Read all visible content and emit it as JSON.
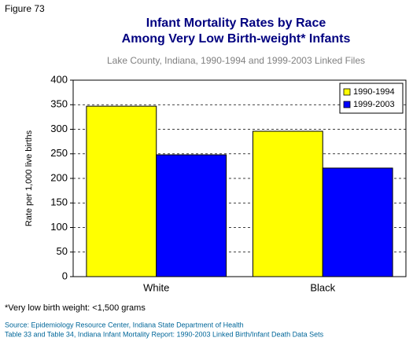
{
  "figure_label": "Figure 73",
  "chart_data": {
    "type": "bar",
    "title": [
      "Infant Mortality Rates by Race",
      "Among Very Low Birth-weight* Infants"
    ],
    "subtitle": "Lake County, Indiana, 1990-1994 and 1999-2003 Linked Files",
    "y_label": "Rate per 1,000 live births",
    "categories": [
      "White",
      "Black"
    ],
    "series": [
      {
        "name": "1990-1994",
        "color": "#ffff00",
        "values": [
          347,
          296
        ]
      },
      {
        "name": "1999-2003",
        "color": "#0000ff",
        "values": [
          248,
          221
        ]
      }
    ],
    "ylim": [
      0,
      400
    ],
    "yticks": [
      0,
      50,
      100,
      150,
      200,
      250,
      300,
      350,
      400
    ],
    "grid": true,
    "legend": "top-right"
  },
  "footnote": "*Very low birth weight: <1,500 grams",
  "source": [
    "Source: Epidemiology Resource Center, Indiana State Department of Health",
    "Table 33 and Table 34, Indiana Infant Mortality Report: 1990-2003 Linked Birth/Infant Death Data Sets"
  ]
}
